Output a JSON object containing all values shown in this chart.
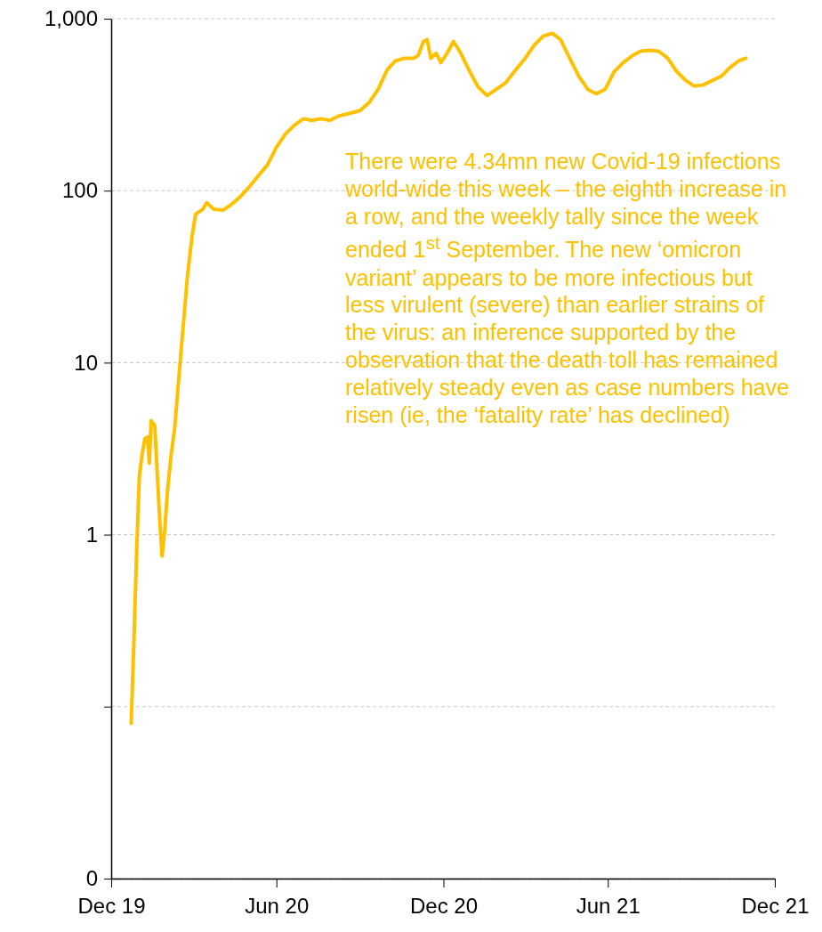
{
  "chart_data": {
    "type": "line",
    "log": "y",
    "grid": "y",
    "marker": "none",
    "line_style": "solid",
    "xlim": [
      "2019-12-31",
      "2021-12-31"
    ],
    "xticks": [
      {
        "value": "2019-12-31",
        "label": "Dec 19"
      },
      {
        "value": "2020-06-30",
        "label": "Jun 20"
      },
      {
        "value": "2020-12-31",
        "label": "Dec 20"
      },
      {
        "value": "2021-06-30",
        "label": "Jun 21"
      },
      {
        "value": "2021-12-31",
        "label": "Dec 21"
      }
    ],
    "ylim": [
      0.01,
      1000
    ],
    "yticks": [
      {
        "value": 0.01,
        "label": "0"
      },
      {
        "value": 0.1,
        "label": null
      },
      1,
      10,
      100,
      {
        "value": 1000,
        "label": "1,000"
      }
    ],
    "x": [
      "2020-01-22",
      "2020-01-25",
      "2020-01-28",
      "2020-01-31",
      "2020-02-03",
      "2020-02-06",
      "2020-02-09",
      "2020-02-11",
      "2020-02-13",
      "2020-02-17",
      "2020-02-20",
      "2020-02-22",
      "2020-02-25",
      "2020-02-28",
      "2020-03-02",
      "2020-03-06",
      "2020-03-10",
      "2020-03-14",
      "2020-03-19",
      "2020-03-24",
      "2020-03-29",
      "2020-04-02",
      "2020-04-10",
      "2020-04-14",
      "2020-04-22",
      "2020-05-02",
      "2020-05-10",
      "2020-05-20",
      "2020-05-31",
      "2020-06-10",
      "2020-06-20",
      "2020-06-30",
      "2020-07-10",
      "2020-07-20",
      "2020-07-30",
      "2020-08-08",
      "2020-08-18",
      "2020-08-28",
      "2020-09-06",
      "2020-09-18",
      "2020-09-30",
      "2020-10-10",
      "2020-10-20",
      "2020-10-30",
      "2020-11-08",
      "2020-11-18",
      "2020-11-28",
      "2020-12-03",
      "2020-12-09",
      "2020-12-13",
      "2020-12-17",
      "2020-12-23",
      "2020-12-28",
      "2021-01-04",
      "2021-01-11",
      "2021-01-19",
      "2021-01-29",
      "2021-02-07",
      "2021-02-17",
      "2021-02-27",
      "2021-03-09",
      "2021-03-19",
      "2021-03-31",
      "2021-04-10",
      "2021-04-20",
      "2021-04-30",
      "2021-05-09",
      "2021-05-19",
      "2021-05-29",
      "2021-06-08",
      "2021-06-17",
      "2021-06-27",
      "2021-07-07",
      "2021-07-17",
      "2021-07-27",
      "2021-08-05",
      "2021-08-15",
      "2021-08-25",
      "2021-09-04",
      "2021-09-14",
      "2021-09-24",
      "2021-10-03",
      "2021-10-13",
      "2021-10-23",
      "2021-11-02",
      "2021-11-12",
      "2021-11-21",
      "2021-11-29"
    ],
    "series": [
      {
        "color": "#ffc000",
        "values": [
          0.08,
          0.24,
          0.8,
          2.2,
          2.9,
          3.6,
          3.7,
          2.6,
          4.6,
          4.3,
          2.1,
          1.35,
          0.75,
          1.07,
          1.8,
          2.9,
          4.2,
          7.6,
          15.6,
          32,
          54,
          73,
          78,
          85,
          78,
          77,
          82,
          91,
          105,
          122,
          141,
          179,
          214,
          241,
          262,
          256,
          262,
          256,
          271,
          281,
          292,
          325,
          388,
          505,
          568,
          589,
          589,
          610,
          738,
          755,
          589,
          630,
          555,
          630,
          738,
          630,
          492,
          402,
          357,
          388,
          422,
          492,
          589,
          703,
          793,
          822,
          755,
          589,
          463,
          388,
          366,
          388,
          492,
          555,
          610,
          647,
          655,
          647,
          589,
          492,
          437,
          406,
          412,
          437,
          463,
          522,
          568,
          590
        ]
      }
    ],
    "annotations": [
      "There were 4.34mn new Covid-19 infections world-wide this week – the eighth increase in a row, and the weekly tally since the week ended 1$^{st}$ September. The new ‘omicron variant’ appears to be more infectious but less virulent (severe)  than earlier strains of the virus: an inference supported by the observation that the death toll has remained relatively steady even as case numbers have risen (ie, the ‘fatality rate’ has declined)"
    ]
  }
}
